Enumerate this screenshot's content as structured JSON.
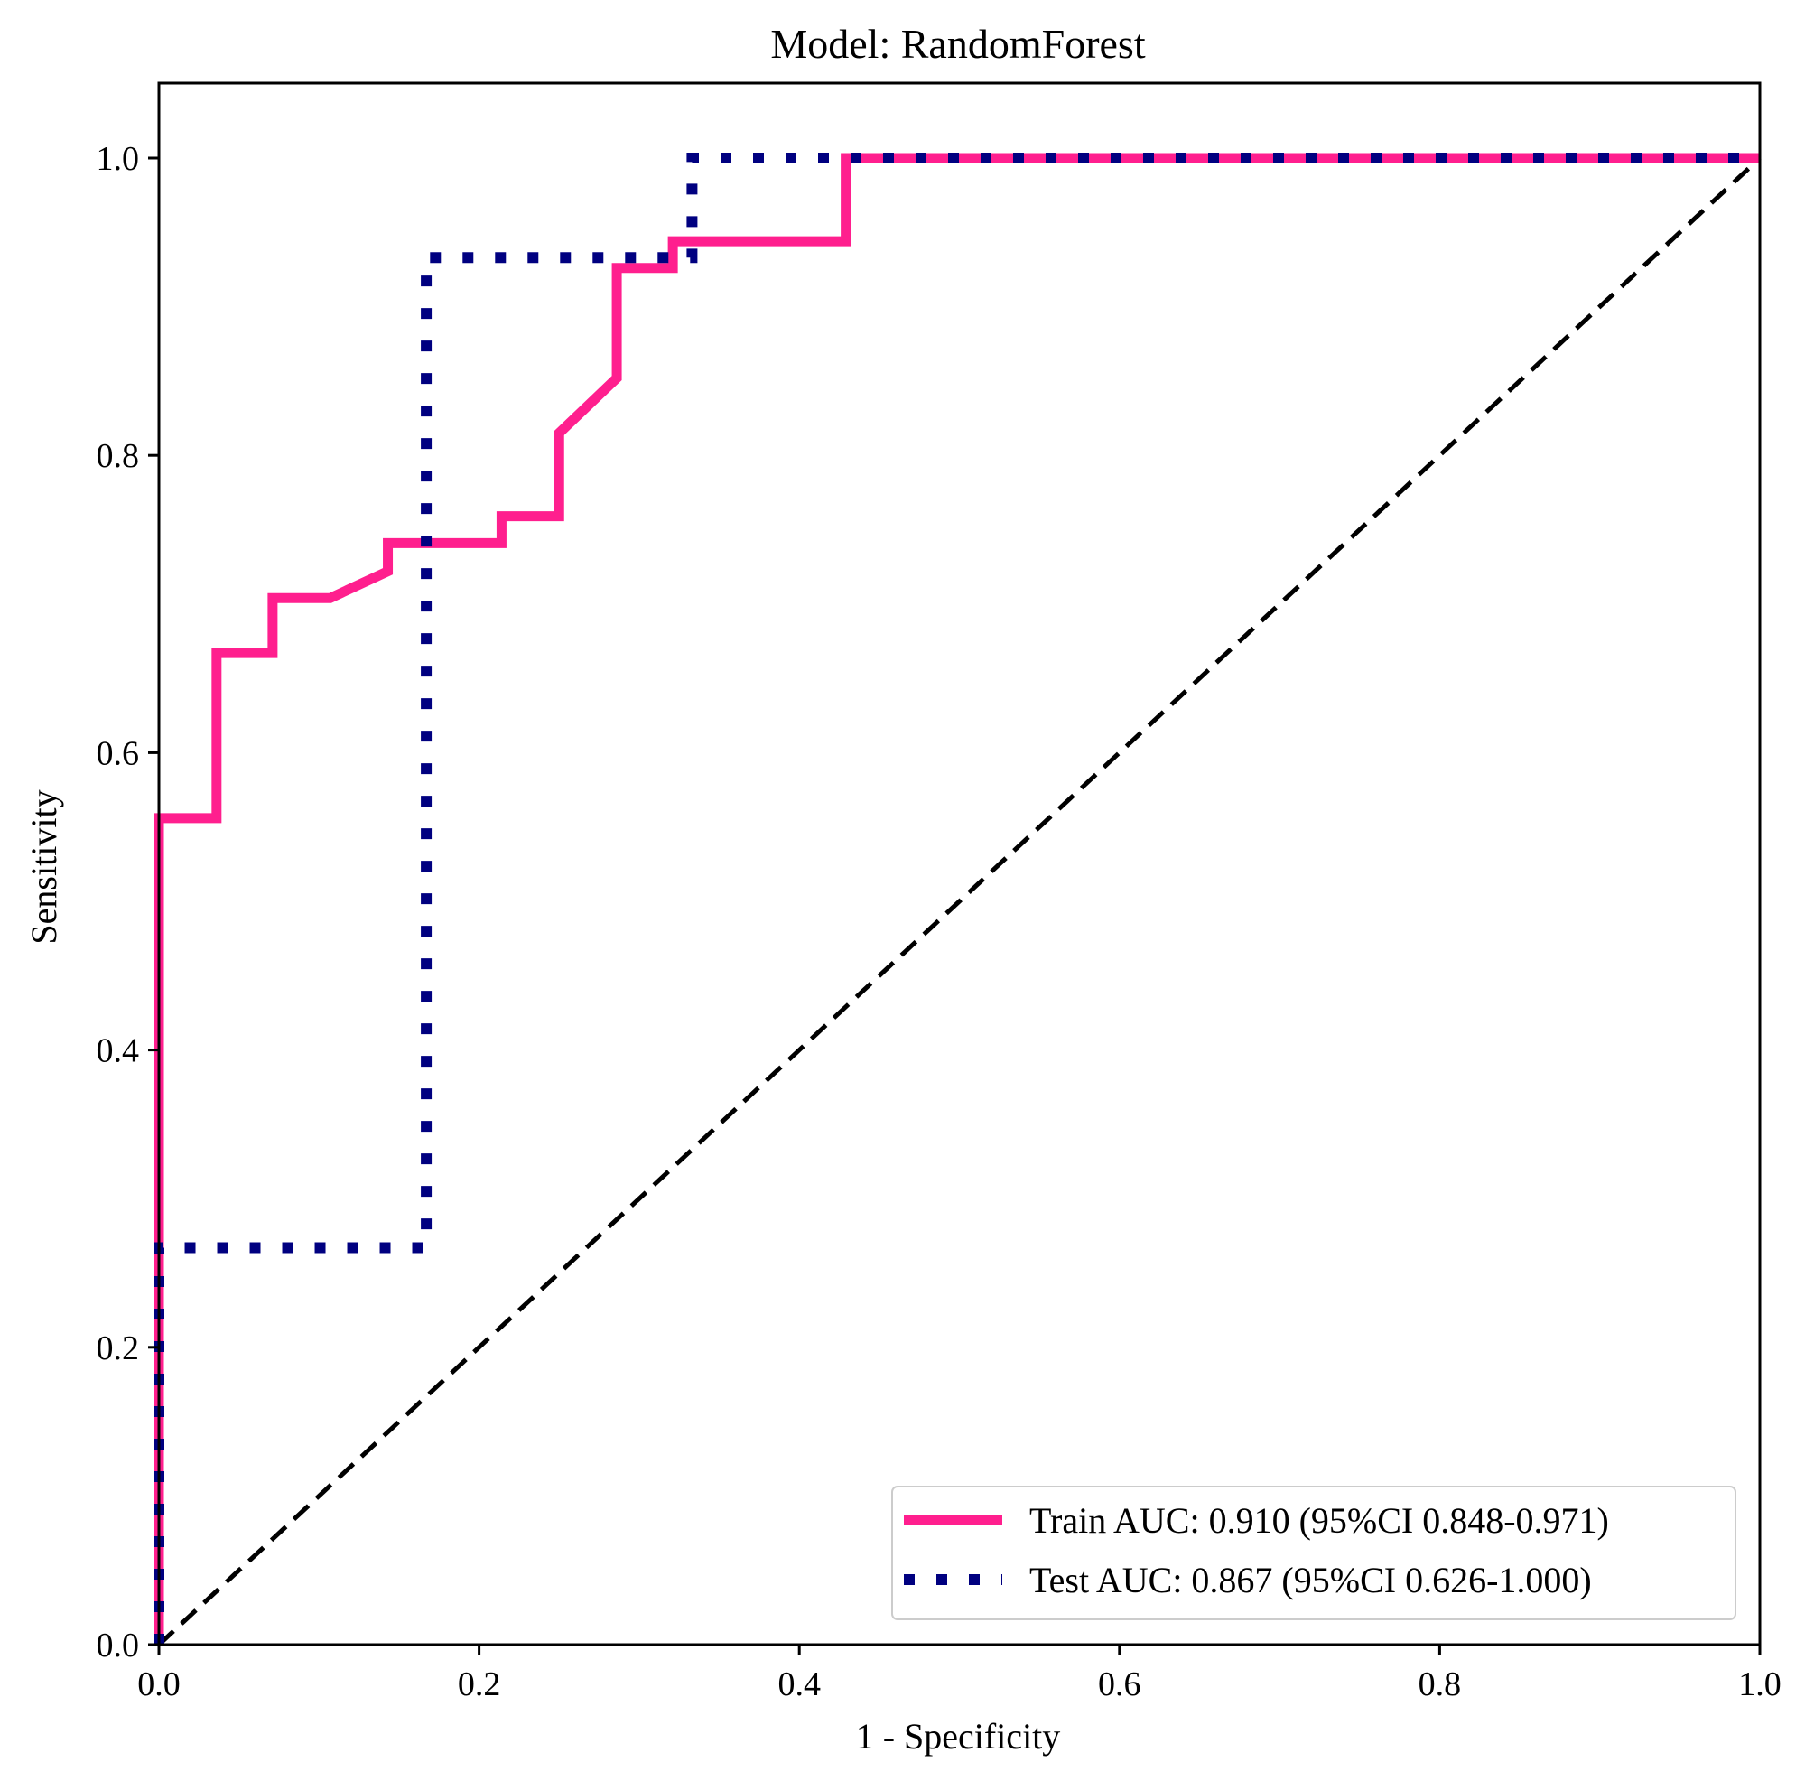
{
  "chart_data": {
    "type": "line",
    "title": "Model: RandomForest",
    "xlabel": "1 - Specificity",
    "ylabel": "Sensitivity",
    "xlim": [
      0.0,
      1.0
    ],
    "ylim": [
      0.0,
      1.05
    ],
    "xticks": [
      0.0,
      0.2,
      0.4,
      0.6,
      0.8,
      1.0
    ],
    "yticks": [
      0.0,
      0.2,
      0.4,
      0.6,
      0.8,
      1.0
    ],
    "xtick_labels": [
      "0.0",
      "0.2",
      "0.4",
      "0.6",
      "0.8",
      "1.0"
    ],
    "ytick_labels": [
      "0.0",
      "0.2",
      "0.4",
      "0.6",
      "0.8",
      "1.0"
    ],
    "grid": false,
    "legend_position": "lower-right",
    "series": [
      {
        "name": "Train AUC: 0.910 (95%CI 0.848-0.971)",
        "color": "#ff1f8e",
        "style": "solid",
        "x": [
          0.0,
          0.0,
          0.036,
          0.036,
          0.071,
          0.071,
          0.107,
          0.143,
          0.143,
          0.214,
          0.214,
          0.25,
          0.25,
          0.286,
          0.286,
          0.321,
          0.321,
          0.429,
          0.429,
          1.0
        ],
        "y": [
          0.0,
          0.556,
          0.556,
          0.667,
          0.667,
          0.704,
          0.704,
          0.722,
          0.741,
          0.741,
          0.759,
          0.759,
          0.815,
          0.852,
          0.926,
          0.926,
          0.944,
          0.944,
          1.0,
          1.0
        ]
      },
      {
        "name": "Test AUC: 0.867 (95%CI 0.626-1.000)",
        "color": "#000080",
        "style": "dotted",
        "x": [
          0.0,
          0.0,
          0.167,
          0.167,
          0.333,
          0.333,
          1.0
        ],
        "y": [
          0.0,
          0.267,
          0.267,
          0.933,
          0.933,
          1.0,
          1.0
        ]
      }
    ],
    "reference_line": {
      "color": "#000000",
      "style": "dashed",
      "x": [
        0.0,
        1.0
      ],
      "y": [
        0.0,
        1.0
      ]
    }
  }
}
